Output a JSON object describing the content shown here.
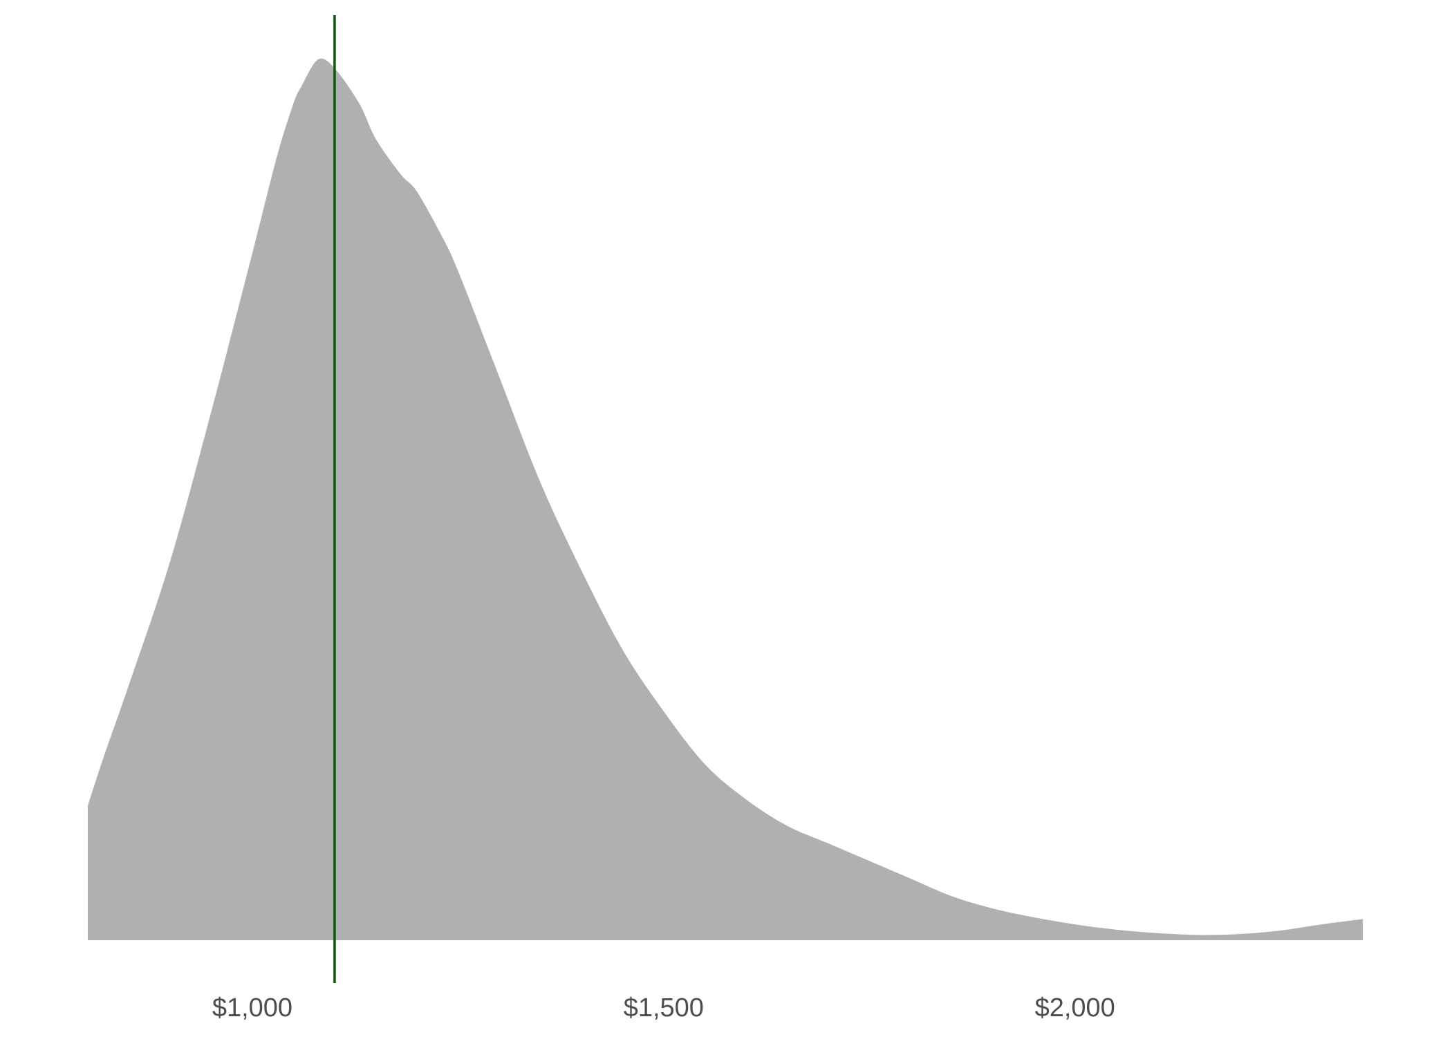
{
  "chart_data": {
    "type": "area",
    "title": "",
    "xlabel": "",
    "ylabel": "",
    "xlim": [
      800,
      2360
    ],
    "ylim": [
      0,
      1.0
    ],
    "grid": false,
    "legend": "none",
    "colors": {
      "fill": "#b0b0b0",
      "reference_line": "#0b5a0b",
      "tick_text": "#4d4d4d"
    },
    "x_ticks": [
      {
        "value": 1000,
        "label": "$1,000"
      },
      {
        "value": 1500,
        "label": "$1,500"
      },
      {
        "value": 2000,
        "label": "$2,000"
      }
    ],
    "reference_line": {
      "x": 1100
    },
    "series": [
      {
        "x": [
          800,
          820,
          850,
          900,
          950,
          1000,
          1030,
          1050,
          1060,
          1080,
          1100,
          1130,
          1150,
          1180,
          1200,
          1230,
          1250,
          1300,
          1350,
          1400,
          1450,
          1500,
          1550,
          1600,
          1650,
          1700,
          1750,
          1800,
          1850,
          1900,
          1950,
          2000,
          2050,
          2100,
          2150,
          2200,
          2250,
          2300,
          2350
        ],
        "y": [
          0.153,
          0.21,
          0.29,
          0.43,
          0.6,
          0.78,
          0.89,
          0.95,
          0.97,
          1.0,
          0.99,
          0.95,
          0.91,
          0.87,
          0.85,
          0.8,
          0.76,
          0.64,
          0.52,
          0.42,
          0.33,
          0.26,
          0.2,
          0.16,
          0.13,
          0.11,
          0.09,
          0.07,
          0.05,
          0.036,
          0.026,
          0.018,
          0.012,
          0.008,
          0.006,
          0.007,
          0.011,
          0.018,
          0.024
        ]
      }
    ]
  }
}
